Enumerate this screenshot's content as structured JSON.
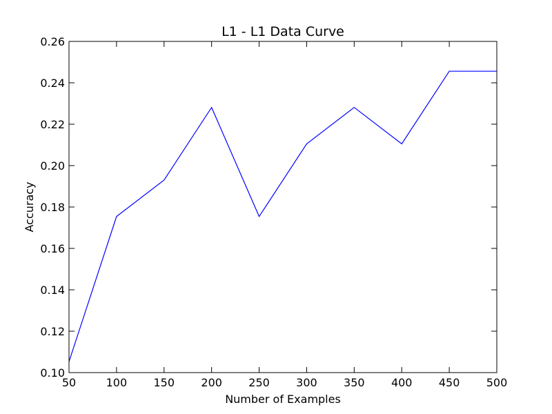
{
  "chart_data": {
    "type": "line",
    "title": "L1 - L1 Data Curve",
    "xlabel": "Number of Examples",
    "ylabel": "Accuracy",
    "xlim": [
      50,
      500
    ],
    "ylim": [
      0.1,
      0.26
    ],
    "xticks": [
      50,
      100,
      150,
      200,
      250,
      300,
      350,
      400,
      450,
      500
    ],
    "yticks": [
      "0.10",
      "0.12",
      "0.14",
      "0.16",
      "0.18",
      "0.20",
      "0.22",
      "0.24",
      "0.26"
    ],
    "grid": false,
    "series": [
      {
        "color": "#0000ff",
        "x": [
          50,
          100,
          150,
          200,
          250,
          300,
          350,
          400,
          450,
          500
        ],
        "y": [
          0.1053,
          0.1754,
          0.193,
          0.2281,
          0.1754,
          0.2105,
          0.2281,
          0.2105,
          0.2456,
          0.2456
        ]
      }
    ]
  }
}
